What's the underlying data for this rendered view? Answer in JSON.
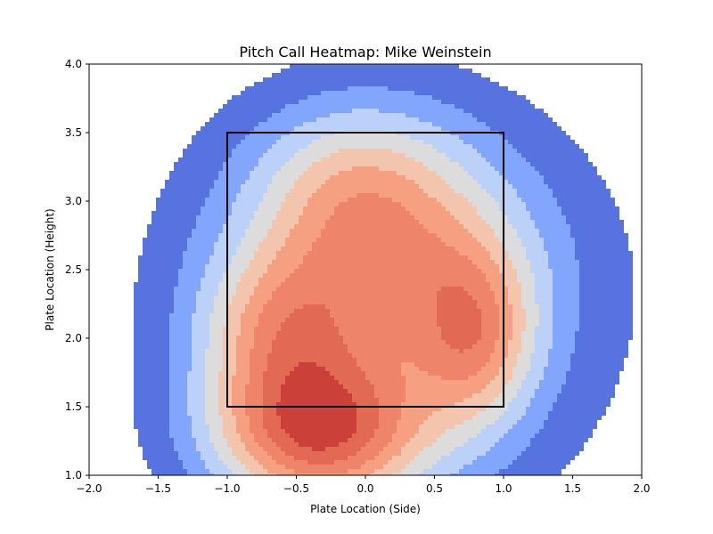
{
  "chart_data": {
    "type": "heatmap",
    "subtype": "filled-contour",
    "title": "Pitch Call Heatmap: Mike Weinstein",
    "xlabel": "Plate Location (Side)",
    "ylabel": "Plate Location (Height)",
    "xlim": [
      -2.0,
      2.0
    ],
    "ylim": [
      1.0,
      4.0
    ],
    "xticks": [
      "−2.0",
      "−1.5",
      "−1.0",
      "−0.5",
      "0.0",
      "0.5",
      "1.0",
      "1.5",
      "2.0"
    ],
    "yticks": [
      "1.0",
      "1.5",
      "2.0",
      "2.5",
      "3.0",
      "3.5",
      "4.0"
    ],
    "xtick_values": [
      -2.0,
      -1.5,
      -1.0,
      -0.5,
      0.0,
      0.5,
      1.0,
      1.5,
      2.0
    ],
    "ytick_values": [
      1.0,
      1.5,
      2.0,
      2.5,
      3.0,
      3.5,
      4.0
    ],
    "colormap": "coolwarm",
    "level_colors": [
      "#ffffff",
      "#5673e0",
      "#82a6fb",
      "#bbd1f8",
      "#dddcdc",
      "#f4c5ad",
      "#f5a081",
      "#ee8468",
      "#e26952",
      "#cc403a"
    ],
    "grid": false,
    "strike_zone": {
      "x": [
        -1.0,
        1.0
      ],
      "y": [
        1.5,
        3.5
      ],
      "color": "#000000"
    },
    "density_kernels": [
      {
        "x": -0.35,
        "y": 1.3,
        "sx": 0.55,
        "sy": 0.4,
        "w": 1.0
      },
      {
        "x": 0.8,
        "y": 2.0,
        "sx": 0.3,
        "sy": 0.45,
        "w": 0.55
      },
      {
        "x": -0.65,
        "y": 2.05,
        "sx": 0.4,
        "sy": 0.4,
        "w": 0.45
      },
      {
        "x": 0.1,
        "y": 2.65,
        "sx": 0.7,
        "sy": 0.6,
        "w": 0.55
      },
      {
        "x": 0.2,
        "y": 2.2,
        "sx": 1.1,
        "sy": 1.05,
        "w": 0.45
      },
      {
        "x": -0.1,
        "y": 3.2,
        "sx": 0.5,
        "sy": 0.4,
        "w": 0.25
      }
    ]
  }
}
